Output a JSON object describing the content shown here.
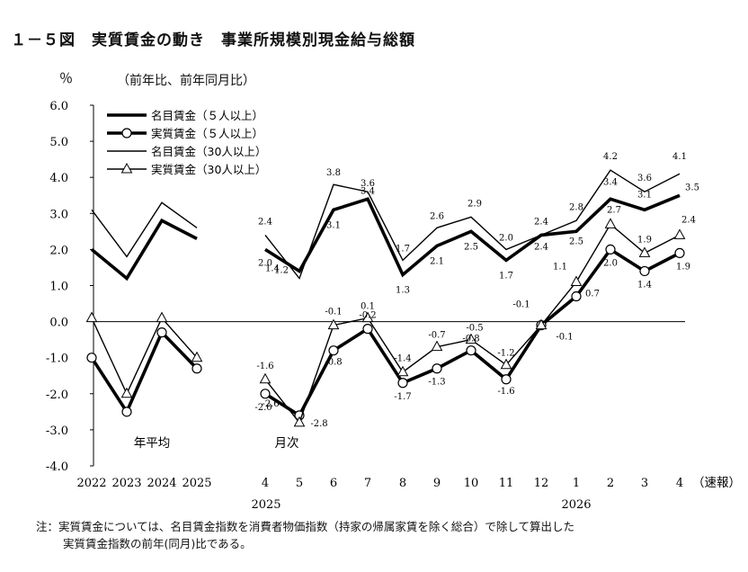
{
  "title": "１－５図　実質賃金の動き　事業所規模別現金給与総額",
  "unit": "％",
  "subtitle": "（前年比、前年同月比）",
  "note": {
    "line1": "注：実質賃金については、名目賃金指数を消費者物価指数（持家の帰属家賃を除く総合）で除して算出した",
    "line2": "実質賃金指数の前年(同月)比である。"
  },
  "chart_data": {
    "type": "line",
    "ylim": [
      -4.0,
      6.0
    ],
    "yticks": [
      "6.0",
      "5.0",
      "4.0",
      "3.0",
      "2.0",
      "1.0",
      "0.0",
      "-1.0",
      "-2.0",
      "-3.0",
      "-4.0"
    ],
    "x_annual": [
      "2022",
      "2023",
      "2024",
      "2025"
    ],
    "x_monthly": [
      "4",
      "5",
      "6",
      "7",
      "8",
      "9",
      "10",
      "11",
      "12",
      "1",
      "2",
      "3",
      "4"
    ],
    "suffix_label": "（速報）",
    "year_labels": [
      "2025",
      "2026"
    ],
    "group_labels": [
      "年平均",
      "月次"
    ],
    "legend": [
      "名目賃金（５人以上）",
      "実質賃金（５人以上）",
      "名目賃金（30人以上）",
      "実質賃金（30人以上）"
    ],
    "series": [
      {
        "name": "名目賃金（５人以上）",
        "style": "thick",
        "annual": [
          2.0,
          1.2,
          2.8,
          2.3
        ],
        "monthly": [
          2.0,
          1.4,
          3.1,
          3.4,
          1.3,
          2.1,
          2.5,
          1.7,
          2.4,
          2.5,
          3.4,
          3.1,
          3.5
        ]
      },
      {
        "name": "実質賃金（５人以上）",
        "style": "thick-circle",
        "annual": [
          -1.0,
          -2.5,
          -0.3,
          -1.3
        ],
        "monthly": [
          -2.0,
          -2.6,
          -0.8,
          -0.2,
          -1.7,
          -1.3,
          -0.8,
          -1.6,
          -0.1,
          0.7,
          2.0,
          1.4,
          1.9
        ]
      },
      {
        "name": "名目賃金（30人以上）",
        "style": "thin",
        "annual": [
          3.1,
          1.8,
          3.3,
          2.6
        ],
        "monthly": [
          2.4,
          1.2,
          3.8,
          3.6,
          1.7,
          2.6,
          2.9,
          2.0,
          2.4,
          2.8,
          4.2,
          3.6,
          4.1
        ]
      },
      {
        "name": "実質賃金（30人以上）",
        "style": "thin-triangle",
        "annual": [
          0.1,
          -2.0,
          0.1,
          -1.0
        ],
        "monthly": [
          -1.6,
          -2.8,
          -0.1,
          0.1,
          -1.4,
          -0.7,
          -0.5,
          -1.2,
          -0.1,
          1.1,
          2.7,
          1.9,
          2.4
        ]
      }
    ],
    "data_labels": {
      "名目賃金（５人以上）": [
        "2.0",
        "1.4",
        "3.1",
        "3.4",
        "1.3",
        "2.1",
        "2.5",
        "1.7",
        "2.4",
        "2.5",
        "3.4",
        "3.1",
        "3.5"
      ],
      "実質賃金（５人以上）": [
        "-2.0",
        "-2.6",
        "-0.8",
        "-0.2",
        "-1.7",
        "-1.3",
        "-0.8",
        "-1.6",
        "-0.1",
        "0.7",
        "2.0",
        "1.4",
        "1.9"
      ],
      "名目賃金（30人以上）": [
        "2.4",
        "1.2",
        "3.8",
        "3.6",
        "1.7",
        "2.6",
        "2.9",
        "2.0",
        "2.4",
        "2.8",
        "4.2",
        "3.6",
        "4.1"
      ],
      "実質賃金（30人以上）": [
        "-1.6",
        "-2.8",
        "-0.1",
        "0.1",
        "-1.4",
        "-0.7",
        "-0.5",
        "-1.2",
        "-0.1",
        "1.1",
        "2.7",
        "1.9",
        "2.4"
      ]
    },
    "grid": false,
    "legend_position": "top-left"
  }
}
